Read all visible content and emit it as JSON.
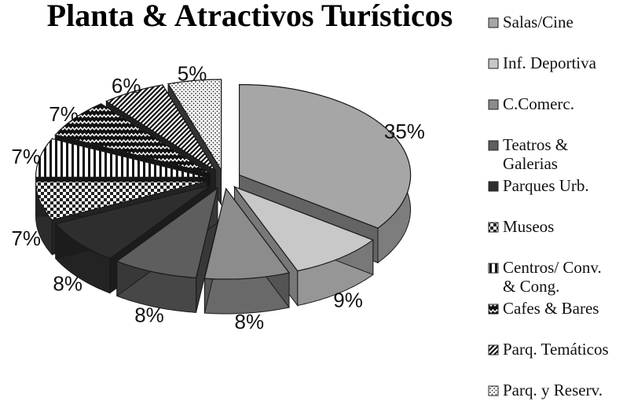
{
  "chart_data": {
    "type": "pie",
    "title": "Planta & Atractivos Turísticos",
    "legend_position": "right",
    "slices": [
      {
        "label": "Salas/Cine",
        "value": 35,
        "value_label": "35%",
        "color": "#a6a6a6",
        "pattern": "solid"
      },
      {
        "label": "Inf. Deportiva",
        "value": 9,
        "value_label": "9%",
        "color": "#c8c8c8",
        "pattern": "solid"
      },
      {
        "label": "C.Comerc.",
        "value": 8,
        "value_label": "8%",
        "color": "#8c8c8c",
        "pattern": "solid"
      },
      {
        "label": "Teatros & Galerias",
        "value": 8,
        "value_label": "8%",
        "color": "#5e5e5e",
        "pattern": "solid"
      },
      {
        "label": "Parques Urb.",
        "value": 8,
        "value_label": "8%",
        "color": "#2e2e2e",
        "pattern": "solid"
      },
      {
        "label": "Museos",
        "value": 7,
        "value_label": "7%",
        "color": "#3a3a3a",
        "pattern": "checker"
      },
      {
        "label": "Centros/ Conv. & Cong.",
        "value": 7,
        "value_label": "7%",
        "color": "#222222",
        "pattern": "vlines"
      },
      {
        "label": "Cafes & Bares",
        "value": 7,
        "value_label": "7%",
        "color": "#222222",
        "pattern": "zigzag"
      },
      {
        "label": "Parq. Temáticos",
        "value": 6,
        "value_label": "6%",
        "color": "#333333",
        "pattern": "diag"
      },
      {
        "label": "Parq. y Reserv.",
        "value": 5,
        "value_label": "5%",
        "color": "#555555",
        "pattern": "dots"
      }
    ]
  }
}
